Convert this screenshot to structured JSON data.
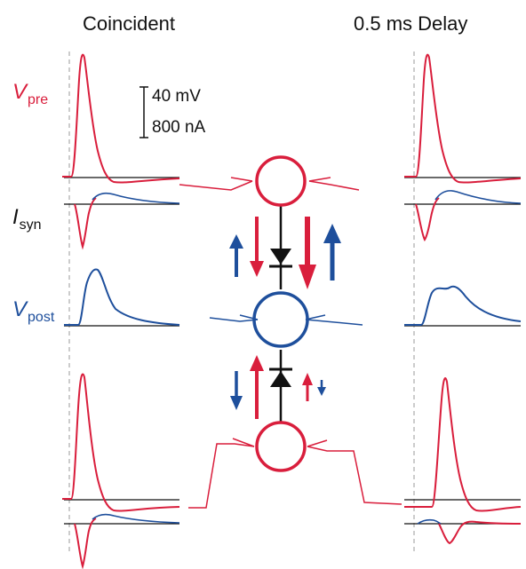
{
  "headers": {
    "left": "Coincident",
    "right": "0.5 ms Delay"
  },
  "row_labels": {
    "vpre": {
      "main": "V",
      "sub": "pre"
    },
    "isyn": {
      "main": "I",
      "sub": "syn"
    },
    "vpost": {
      "main": "V",
      "sub": "post"
    }
  },
  "scale_bar": {
    "voltage": "40 mV",
    "current": "800 nA"
  },
  "colors": {
    "pre": "#d91e3c",
    "post": "#1e4f9c",
    "text": "#111111",
    "diode": "#111111"
  }
}
